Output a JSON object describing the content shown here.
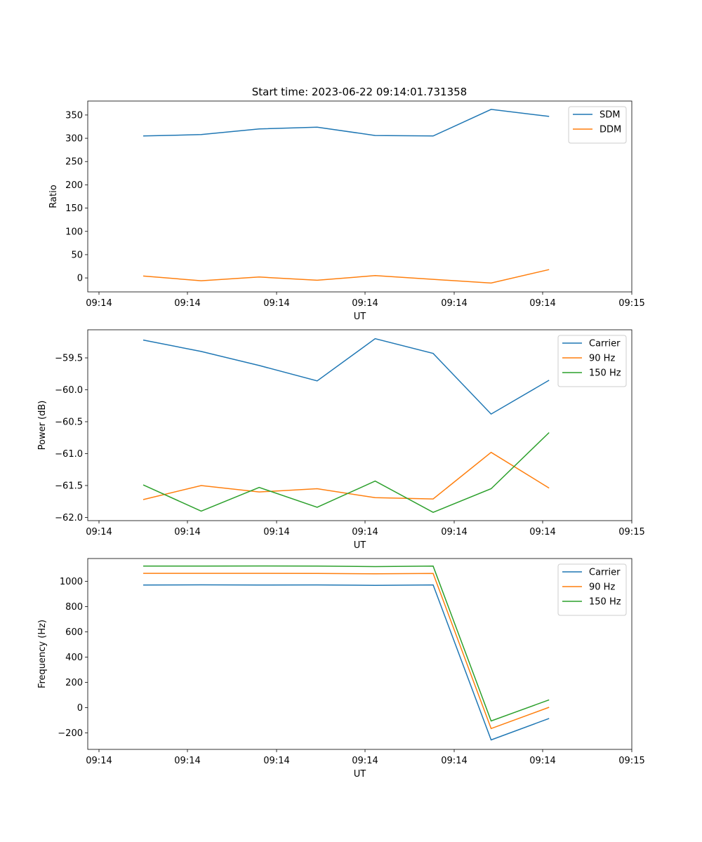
{
  "figure": {
    "title": "Start time: 2023-06-22 09:14:01.731358"
  },
  "colors": {
    "series1": "#1f77b4",
    "series2": "#ff7f0e",
    "series3": "#2ca02c",
    "axis": "#000000",
    "legend_border": "#cccccc"
  },
  "chart_data": [
    {
      "type": "line",
      "title": "Start time: 2023-06-22 09:14:01.731358",
      "xlabel": "UT",
      "ylabel": "Ratio",
      "x": [
        "09:14:02.25",
        "09:14:02.75",
        "09:14:03.25",
        "09:14:03.75",
        "09:14:04.25",
        "09:14:04.75",
        "09:14:05.25",
        "09:14:05.75"
      ],
      "x_ticklabels": [
        "09:14",
        "09:14",
        "09:14",
        "09:14",
        "09:14",
        "09:14",
        "09:15"
      ],
      "yticks": [
        0,
        50,
        100,
        150,
        200,
        250,
        300,
        350
      ],
      "ylim": [
        -30,
        380
      ],
      "legend": "upper-right",
      "grid": false,
      "series": [
        {
          "name": "SDM",
          "color": "#1f77b4",
          "values": [
            305,
            308,
            320,
            324,
            306,
            305,
            362,
            347
          ]
        },
        {
          "name": "DDM",
          "color": "#ff7f0e",
          "values": [
            4,
            -6,
            2,
            -5,
            5,
            -3,
            -11,
            18
          ]
        }
      ]
    },
    {
      "type": "line",
      "xlabel": "UT",
      "ylabel": "Power (dB)",
      "x": [
        "09:14:02.25",
        "09:14:02.75",
        "09:14:03.25",
        "09:14:03.75",
        "09:14:04.25",
        "09:14:04.75",
        "09:14:05.25",
        "09:14:05.75"
      ],
      "x_ticklabels": [
        "09:14",
        "09:14",
        "09:14",
        "09:14",
        "09:14",
        "09:14",
        "09:15"
      ],
      "yticks": [
        -62.0,
        -61.5,
        -61.0,
        -60.5,
        -60.0,
        -59.5
      ],
      "ytick_labels": [
        "−62.0",
        "−61.5",
        "−61.0",
        "−60.5",
        "−60.0",
        "−59.5"
      ],
      "ylim": [
        -62.05,
        -59.06
      ],
      "legend": "upper-right",
      "grid": false,
      "series": [
        {
          "name": "Carrier",
          "color": "#1f77b4",
          "values": [
            -59.22,
            -59.4,
            -59.62,
            -59.86,
            -59.2,
            -59.43,
            -60.38,
            -59.85
          ]
        },
        {
          "name": "90 Hz",
          "color": "#ff7f0e",
          "values": [
            -61.72,
            -61.5,
            -61.6,
            -61.55,
            -61.69,
            -61.71,
            -60.98,
            -61.54
          ]
        },
        {
          "name": "150 Hz",
          "color": "#2ca02c",
          "values": [
            -61.49,
            -61.9,
            -61.53,
            -61.84,
            -61.43,
            -61.92,
            -61.55,
            -60.67
          ]
        }
      ]
    },
    {
      "type": "line",
      "xlabel": "UT",
      "ylabel": "Frequency (Hz)",
      "x": [
        "09:14:02.25",
        "09:14:02.75",
        "09:14:03.25",
        "09:14:03.75",
        "09:14:04.25",
        "09:14:04.75",
        "09:14:05.25",
        "09:14:05.75"
      ],
      "x_ticklabels": [
        "09:14",
        "09:14",
        "09:14",
        "09:14",
        "09:14",
        "09:14",
        "09:15"
      ],
      "yticks": [
        -200,
        0,
        200,
        400,
        600,
        800,
        1000
      ],
      "ytick_labels": [
        "−200",
        "0",
        "200",
        "400",
        "600",
        "800",
        "1000"
      ],
      "ylim": [
        -330,
        1180
      ],
      "legend": "upper-right",
      "grid": false,
      "series": [
        {
          "name": "Carrier",
          "color": "#1f77b4",
          "values": [
            970,
            972,
            970,
            971,
            968,
            971,
            -255,
            -85
          ]
        },
        {
          "name": "90 Hz",
          "color": "#ff7f0e",
          "values": [
            1063,
            1063,
            1063,
            1062,
            1059,
            1062,
            -165,
            3
          ]
        },
        {
          "name": "150 Hz",
          "color": "#2ca02c",
          "values": [
            1120,
            1120,
            1121,
            1120,
            1116,
            1120,
            -105,
            62
          ]
        }
      ]
    }
  ]
}
